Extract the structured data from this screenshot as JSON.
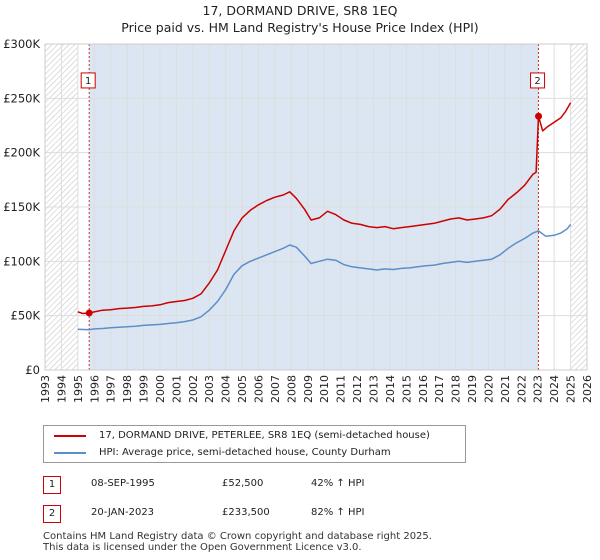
{
  "chart_data": {
    "type": "line",
    "title": "17, DORMAND DRIVE, SR8 1EQ",
    "subtitle": "Price paid vs. HM Land Registry's House Price Index (HPI)",
    "x_range": [
      1993,
      2026
    ],
    "ylim": [
      0,
      300000
    ],
    "y_ticks": [
      0,
      50000,
      100000,
      150000,
      200000,
      250000,
      300000
    ],
    "y_tick_labels": [
      "£0",
      "£50K",
      "£100K",
      "£150K",
      "£200K",
      "£250K",
      "£300K"
    ],
    "x_tick_labels": [
      "1993",
      "1994",
      "1995",
      "1996",
      "1997",
      "1998",
      "1999",
      "2000",
      "2001",
      "2002",
      "2003",
      "2004",
      "2005",
      "2006",
      "2007",
      "2008",
      "2009",
      "2010",
      "2011",
      "2012",
      "2013",
      "2014",
      "2015",
      "2016",
      "2017",
      "2018",
      "2019",
      "2020",
      "2021",
      "2022",
      "2023",
      "2024",
      "2025",
      "2026"
    ],
    "grid": true,
    "hatched_before": 1995.0,
    "hatched_after": 2025.0,
    "colors": {
      "property": "#cc0000",
      "hpi": "#5b8fc9",
      "shade": "#dce6f2",
      "grid": "#dddddd"
    },
    "series": [
      {
        "name": "17, DORMAND DRIVE, PETERLEE, SR8 1EQ (semi-detached house)",
        "color": "#cc0000",
        "points": [
          [
            1995.0,
            53500
          ],
          [
            1995.3,
            52000
          ],
          [
            1995.69,
            52500
          ],
          [
            1996.0,
            53500
          ],
          [
            1996.5,
            55000
          ],
          [
            1997.0,
            55500
          ],
          [
            1997.5,
            56500
          ],
          [
            1998.0,
            57000
          ],
          [
            1998.5,
            57500
          ],
          [
            1999.0,
            58500
          ],
          [
            1999.5,
            59000
          ],
          [
            2000.0,
            60000
          ],
          [
            2000.5,
            62000
          ],
          [
            2001.0,
            63000
          ],
          [
            2001.5,
            64000
          ],
          [
            2002.0,
            66000
          ],
          [
            2002.5,
            70000
          ],
          [
            2003.0,
            80000
          ],
          [
            2003.5,
            92000
          ],
          [
            2004.0,
            110000
          ],
          [
            2004.5,
            128000
          ],
          [
            2005.0,
            140000
          ],
          [
            2005.5,
            147000
          ],
          [
            2006.0,
            152000
          ],
          [
            2006.5,
            156000
          ],
          [
            2007.0,
            159000
          ],
          [
            2007.5,
            161000
          ],
          [
            2007.9,
            164000
          ],
          [
            2008.3,
            158000
          ],
          [
            2008.8,
            148000
          ],
          [
            2009.2,
            138000
          ],
          [
            2009.7,
            140000
          ],
          [
            2010.2,
            146000
          ],
          [
            2010.7,
            143000
          ],
          [
            2011.2,
            138000
          ],
          [
            2011.7,
            135000
          ],
          [
            2012.2,
            134000
          ],
          [
            2012.7,
            132000
          ],
          [
            2013.2,
            131000
          ],
          [
            2013.7,
            132000
          ],
          [
            2014.2,
            130000
          ],
          [
            2014.7,
            131000
          ],
          [
            2015.2,
            132000
          ],
          [
            2015.7,
            133000
          ],
          [
            2016.2,
            134000
          ],
          [
            2016.7,
            135000
          ],
          [
            2017.2,
            137000
          ],
          [
            2017.7,
            139000
          ],
          [
            2018.2,
            140000
          ],
          [
            2018.7,
            138000
          ],
          [
            2019.2,
            139000
          ],
          [
            2019.7,
            140000
          ],
          [
            2020.2,
            142000
          ],
          [
            2020.7,
            148000
          ],
          [
            2021.2,
            157000
          ],
          [
            2021.7,
            163000
          ],
          [
            2022.2,
            170000
          ],
          [
            2022.7,
            180000
          ],
          [
            2022.9,
            182000
          ],
          [
            2023.05,
            233500
          ],
          [
            2023.3,
            220000
          ],
          [
            2023.6,
            224000
          ],
          [
            2024.0,
            228000
          ],
          [
            2024.4,
            232000
          ],
          [
            2024.7,
            238000
          ],
          [
            2025.0,
            246000
          ]
        ]
      },
      {
        "name": "HPI: Average price, semi-detached house, County Durham",
        "color": "#5b8fc9",
        "points": [
          [
            1995.0,
            37500
          ],
          [
            1995.69,
            37000
          ],
          [
            1996.0,
            37800
          ],
          [
            1996.5,
            38200
          ],
          [
            1997.0,
            38800
          ],
          [
            1997.5,
            39300
          ],
          [
            1998.0,
            39800
          ],
          [
            1998.5,
            40300
          ],
          [
            1999.0,
            41000
          ],
          [
            1999.5,
            41500
          ],
          [
            2000.0,
            42000
          ],
          [
            2000.5,
            42800
          ],
          [
            2001.0,
            43500
          ],
          [
            2001.5,
            44500
          ],
          [
            2002.0,
            46000
          ],
          [
            2002.5,
            49000
          ],
          [
            2003.0,
            55000
          ],
          [
            2003.5,
            63000
          ],
          [
            2004.0,
            74000
          ],
          [
            2004.5,
            88000
          ],
          [
            2005.0,
            96000
          ],
          [
            2005.5,
            100000
          ],
          [
            2006.0,
            103000
          ],
          [
            2006.5,
            106000
          ],
          [
            2007.0,
            109000
          ],
          [
            2007.5,
            112000
          ],
          [
            2007.9,
            115000
          ],
          [
            2008.3,
            113000
          ],
          [
            2008.8,
            105000
          ],
          [
            2009.2,
            98000
          ],
          [
            2009.7,
            100000
          ],
          [
            2010.2,
            102000
          ],
          [
            2010.7,
            101000
          ],
          [
            2011.2,
            97000
          ],
          [
            2011.7,
            95000
          ],
          [
            2012.2,
            94000
          ],
          [
            2012.7,
            93000
          ],
          [
            2013.2,
            92000
          ],
          [
            2013.7,
            93000
          ],
          [
            2014.2,
            92500
          ],
          [
            2014.7,
            93500
          ],
          [
            2015.2,
            94000
          ],
          [
            2015.7,
            95000
          ],
          [
            2016.2,
            96000
          ],
          [
            2016.7,
            96500
          ],
          [
            2017.2,
            98000
          ],
          [
            2017.7,
            99000
          ],
          [
            2018.2,
            100000
          ],
          [
            2018.7,
            99000
          ],
          [
            2019.2,
            100000
          ],
          [
            2019.7,
            101000
          ],
          [
            2020.2,
            102000
          ],
          [
            2020.7,
            106000
          ],
          [
            2021.2,
            112000
          ],
          [
            2021.7,
            117000
          ],
          [
            2022.2,
            121000
          ],
          [
            2022.7,
            126000
          ],
          [
            2023.05,
            128000
          ],
          [
            2023.5,
            123000
          ],
          [
            2024.0,
            124000
          ],
          [
            2024.4,
            126000
          ],
          [
            2024.8,
            130000
          ],
          [
            2025.0,
            134000
          ]
        ]
      }
    ],
    "markers": [
      {
        "label": "1",
        "x": 1995.69,
        "value": 52500,
        "box_value": 266000
      },
      {
        "label": "2",
        "x": 2023.05,
        "value": 233500,
        "box_value": 266000
      }
    ]
  },
  "legend": {
    "property_label": "17, DORMAND DRIVE, PETERLEE, SR8 1EQ (semi-detached house)",
    "hpi_label": "HPI: Average price, semi-detached house, County Durham"
  },
  "transactions": [
    {
      "num": "1",
      "date": "08-SEP-1995",
      "price": "£52,500",
      "change": "42% ↑ HPI"
    },
    {
      "num": "2",
      "date": "20-JAN-2023",
      "price": "£233,500",
      "change": "82% ↑ HPI"
    }
  ],
  "footer": {
    "line1": "Contains HM Land Registry data © Crown copyright and database right 2025.",
    "line2": "This data is licensed under the Open Government Licence v3.0."
  }
}
